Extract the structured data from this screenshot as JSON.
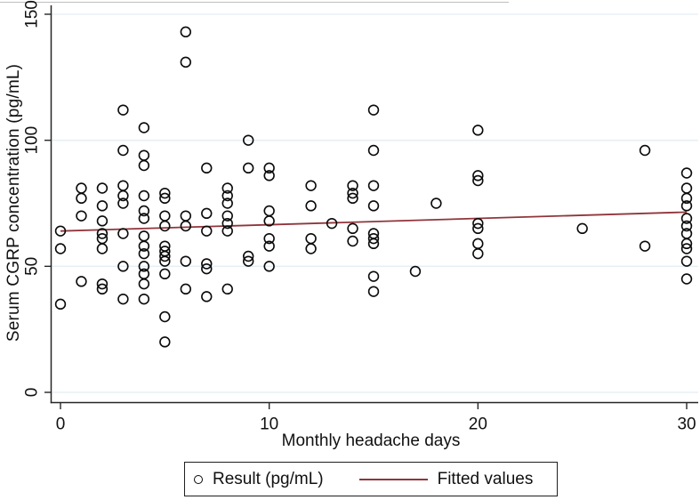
{
  "figure": {
    "xlabel": "Monthly headache days",
    "ylabel": "Serum CGRP concentration (pg/mL)"
  },
  "legend": {
    "result_label": "Result (pg/mL)",
    "fitted_label": "Fitted values"
  },
  "colors": {
    "marker": "#0a0a0a",
    "fitted_line": "#90353b",
    "gridline": "#e4eef2",
    "axis": "#262626",
    "text": "#111111"
  },
  "chart_data": {
    "type": "scatter",
    "title": "",
    "xlabel": "Monthly headache days",
    "ylabel": "Serum CGRP concentration (pg/mL)",
    "xlim": [
      0,
      30.6
    ],
    "ylim": [
      0,
      155
    ],
    "x_ticks": [
      0,
      10,
      20,
      30
    ],
    "y_ticks": [
      0,
      50,
      100,
      150
    ],
    "grid": "horizontal-only",
    "y_tick_label_angle": "vertical",
    "legend_position": "bottom-center",
    "series": [
      {
        "name": "Result (pg/mL)",
        "type": "scatter",
        "marker": "open-circle",
        "points": [
          [
            0,
            64
          ],
          [
            0,
            57
          ],
          [
            0,
            35
          ],
          [
            1,
            81
          ],
          [
            1,
            77
          ],
          [
            1,
            70
          ],
          [
            1,
            44
          ],
          [
            2,
            81
          ],
          [
            2,
            74
          ],
          [
            2,
            68
          ],
          [
            2,
            63
          ],
          [
            2,
            61
          ],
          [
            2,
            57
          ],
          [
            2,
            43
          ],
          [
            2,
            41
          ],
          [
            3,
            112
          ],
          [
            3,
            96
          ],
          [
            3,
            82
          ],
          [
            3,
            78
          ],
          [
            3,
            75
          ],
          [
            3,
            63
          ],
          [
            3,
            50
          ],
          [
            3,
            37
          ],
          [
            4,
            105
          ],
          [
            4,
            94
          ],
          [
            4,
            90
          ],
          [
            4,
            78
          ],
          [
            4,
            72
          ],
          [
            4,
            69
          ],
          [
            4,
            62
          ],
          [
            4,
            58
          ],
          [
            4,
            55
          ],
          [
            4,
            50
          ],
          [
            4,
            47
          ],
          [
            4,
            43
          ],
          [
            4,
            37
          ],
          [
            5,
            79
          ],
          [
            5,
            77
          ],
          [
            5,
            70
          ],
          [
            5,
            66
          ],
          [
            5,
            58
          ],
          [
            5,
            56
          ],
          [
            5,
            54
          ],
          [
            5,
            52
          ],
          [
            5,
            47
          ],
          [
            5,
            30
          ],
          [
            5,
            20
          ],
          [
            6,
            143
          ],
          [
            6,
            131
          ],
          [
            6,
            70
          ],
          [
            6,
            66
          ],
          [
            6,
            52
          ],
          [
            6,
            41
          ],
          [
            7,
            89
          ],
          [
            7,
            71
          ],
          [
            7,
            64
          ],
          [
            7,
            51
          ],
          [
            7,
            49
          ],
          [
            7,
            38
          ],
          [
            8,
            81
          ],
          [
            8,
            78
          ],
          [
            8,
            75
          ],
          [
            8,
            70
          ],
          [
            8,
            67
          ],
          [
            8,
            64
          ],
          [
            8,
            41
          ],
          [
            9,
            100
          ],
          [
            9,
            89
          ],
          [
            9,
            54
          ],
          [
            9,
            52
          ],
          [
            10,
            89
          ],
          [
            10,
            86
          ],
          [
            10,
            72
          ],
          [
            10,
            68
          ],
          [
            10,
            61
          ],
          [
            10,
            58
          ],
          [
            10,
            50
          ],
          [
            12,
            82
          ],
          [
            12,
            74
          ],
          [
            12,
            61
          ],
          [
            12,
            57
          ],
          [
            13,
            67
          ],
          [
            14,
            82
          ],
          [
            14,
            79
          ],
          [
            14,
            77
          ],
          [
            14,
            65
          ],
          [
            14,
            60
          ],
          [
            15,
            112
          ],
          [
            15,
            96
          ],
          [
            15,
            82
          ],
          [
            15,
            74
          ],
          [
            15,
            63
          ],
          [
            15,
            61
          ],
          [
            15,
            59
          ],
          [
            15,
            46
          ],
          [
            15,
            40
          ],
          [
            17,
            48
          ],
          [
            18,
            75
          ],
          [
            20,
            104
          ],
          [
            20,
            86
          ],
          [
            20,
            84
          ],
          [
            20,
            67
          ],
          [
            20,
            65
          ],
          [
            20,
            59
          ],
          [
            20,
            55
          ],
          [
            25,
            65
          ],
          [
            28,
            96
          ],
          [
            28,
            58
          ],
          [
            30,
            87
          ],
          [
            30,
            81
          ],
          [
            30,
            77
          ],
          [
            30,
            74
          ],
          [
            30,
            69
          ],
          [
            30,
            66
          ],
          [
            30,
            63
          ],
          [
            30,
            59
          ],
          [
            30,
            57
          ],
          [
            30,
            52
          ],
          [
            30,
            45
          ]
        ]
      },
      {
        "name": "Fitted values",
        "type": "line",
        "points": [
          [
            0,
            64
          ],
          [
            30,
            71.5
          ]
        ]
      }
    ]
  }
}
